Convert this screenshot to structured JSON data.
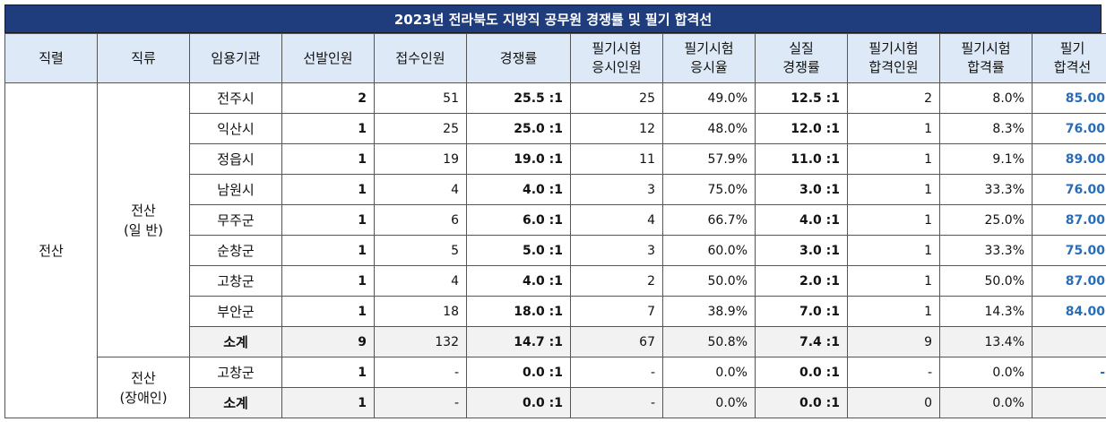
{
  "title": "2023년 전라북도 지방직 공무원 경쟁률 및 필기 합격선",
  "headers": [
    "직렬",
    "직류",
    "임용기관",
    "선발인원",
    "접수인원",
    "경쟁률",
    "필기시험\n응시인원",
    "필기시험\n응시율",
    "실질\n경쟁률",
    "필기시험\n합격인원",
    "필기시험\n합격률",
    "필기\n합격선"
  ],
  "series": "전산",
  "groups": [
    {
      "name": "전산\n(일 반)",
      "rows": [
        {
          "agency": "전주시",
          "quota": "2",
          "applicants": "51",
          "ratio": "25.5 :1",
          "takers": "25",
          "take_rate": "49.0%",
          "real_ratio": "12.5 :1",
          "passers": "2",
          "pass_rate": "8.0%",
          "cutoff": "85.00"
        },
        {
          "agency": "익산시",
          "quota": "1",
          "applicants": "25",
          "ratio": "25.0 :1",
          "takers": "12",
          "take_rate": "48.0%",
          "real_ratio": "12.0 :1",
          "passers": "1",
          "pass_rate": "8.3%",
          "cutoff": "76.00"
        },
        {
          "agency": "정읍시",
          "quota": "1",
          "applicants": "19",
          "ratio": "19.0 :1",
          "takers": "11",
          "take_rate": "57.9%",
          "real_ratio": "11.0 :1",
          "passers": "1",
          "pass_rate": "9.1%",
          "cutoff": "89.00"
        },
        {
          "agency": "남원시",
          "quota": "1",
          "applicants": "4",
          "ratio": "4.0 :1",
          "takers": "3",
          "take_rate": "75.0%",
          "real_ratio": "3.0 :1",
          "passers": "1",
          "pass_rate": "33.3%",
          "cutoff": "76.00"
        },
        {
          "agency": "무주군",
          "quota": "1",
          "applicants": "6",
          "ratio": "6.0 :1",
          "takers": "4",
          "take_rate": "66.7%",
          "real_ratio": "4.0 :1",
          "passers": "1",
          "pass_rate": "25.0%",
          "cutoff": "87.00"
        },
        {
          "agency": "순창군",
          "quota": "1",
          "applicants": "5",
          "ratio": "5.0 :1",
          "takers": "3",
          "take_rate": "60.0%",
          "real_ratio": "3.0 :1",
          "passers": "1",
          "pass_rate": "33.3%",
          "cutoff": "75.00"
        },
        {
          "agency": "고창군",
          "quota": "1",
          "applicants": "4",
          "ratio": "4.0 :1",
          "takers": "2",
          "take_rate": "50.0%",
          "real_ratio": "2.0 :1",
          "passers": "1",
          "pass_rate": "50.0%",
          "cutoff": "87.00"
        },
        {
          "agency": "부안군",
          "quota": "1",
          "applicants": "18",
          "ratio": "18.0 :1",
          "takers": "7",
          "take_rate": "38.9%",
          "real_ratio": "7.0 :1",
          "passers": "1",
          "pass_rate": "14.3%",
          "cutoff": "84.00"
        },
        {
          "agency": "소계",
          "quota": "9",
          "applicants": "132",
          "ratio": "14.7 :1",
          "takers": "67",
          "take_rate": "50.8%",
          "real_ratio": "7.4 :1",
          "passers": "9",
          "pass_rate": "13.4%",
          "cutoff": "",
          "subtotal": true
        }
      ]
    },
    {
      "name": "전산\n(장애인)",
      "rows": [
        {
          "agency": "고창군",
          "quota": "1",
          "applicants": "-",
          "ratio": "0.0 :1",
          "takers": "-",
          "take_rate": "0.0%",
          "real_ratio": "0.0 :1",
          "passers": "-",
          "pass_rate": "0.0%",
          "cutoff": "-"
        },
        {
          "agency": "소계",
          "quota": "1",
          "applicants": "-",
          "ratio": "0.0 :1",
          "takers": "-",
          "take_rate": "0.0%",
          "real_ratio": "0.0 :1",
          "passers": "0",
          "pass_rate": "0.0%",
          "cutoff": "",
          "subtotal": true
        }
      ]
    }
  ]
}
